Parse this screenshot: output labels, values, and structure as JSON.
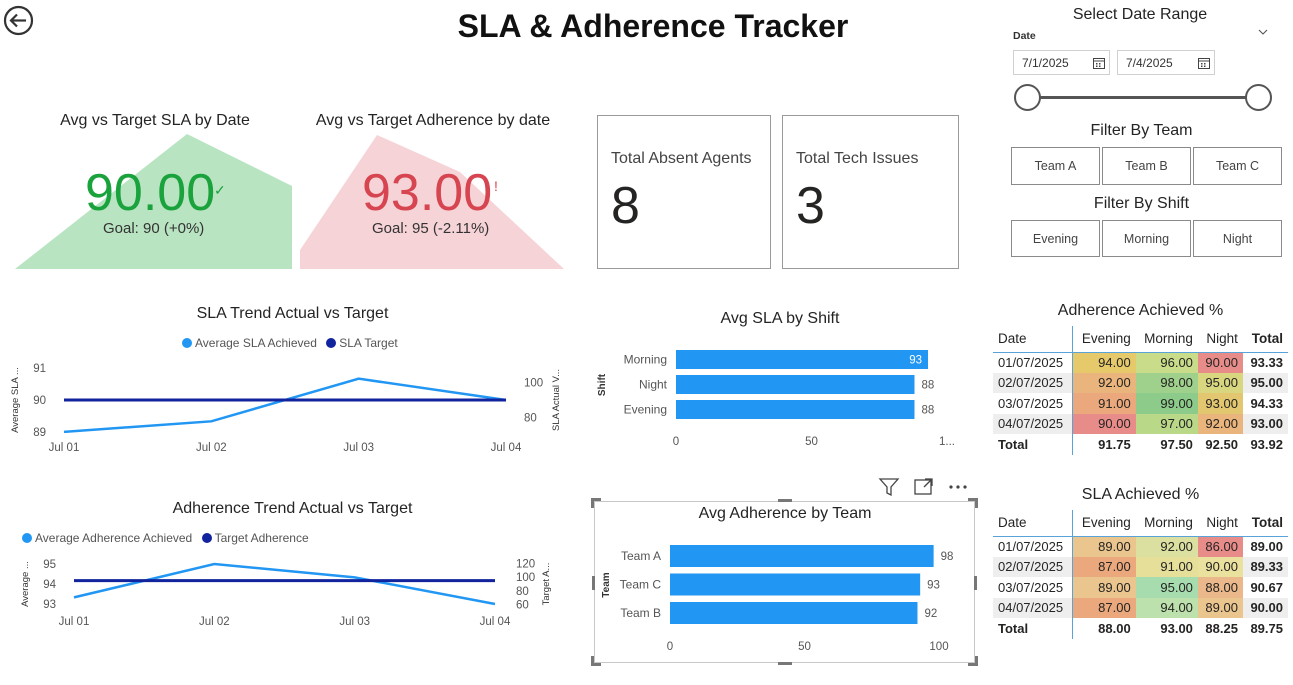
{
  "title": "SLA & Adherence Tracker",
  "kpi_sla": {
    "title": "Avg vs Target SLA by Date",
    "value": "90.00",
    "goal": "Goal: 90 (+0%)",
    "status_icon": "checkmark-icon",
    "color": "#1aa23c",
    "bg": "#b9e4c2"
  },
  "kpi_adh": {
    "title": "Avg vs Target Adherence by date",
    "value": "93.00",
    "goal": "Goal: 95 (-2.11%)",
    "status_icon": "exclamation-icon",
    "color": "#d64550",
    "bg": "#f6d3d7"
  },
  "cards": [
    {
      "label": "Total Absent Agents",
      "value": "8"
    },
    {
      "label": "Total Tech Issues",
      "value": "3"
    }
  ],
  "date_slicer": {
    "title": "Select Date Range",
    "field_label": "Date",
    "start": "7/1/2025",
    "end": "7/4/2025"
  },
  "team_filter": {
    "title": "Filter By Team",
    "options": [
      "Team A",
      "Team B",
      "Team C"
    ]
  },
  "shift_filter": {
    "title": "Filter By Shift",
    "options": [
      "Evening",
      "Morning",
      "Night"
    ]
  },
  "sla_trend": {
    "title": "SLA Trend Actual vs Target",
    "legend": [
      "Average SLA Achieved",
      "SLA Target"
    ],
    "y_left_label": "Average SLA ...",
    "y_right_label": "SLA Actual V...",
    "y_left_ticks": [
      "91",
      "90",
      "89"
    ],
    "y_right_ticks": [
      "100",
      "80"
    ],
    "x_ticks": [
      "Jul 01",
      "Jul 02",
      "Jul 03",
      "Jul 04"
    ]
  },
  "adh_trend": {
    "title": "Adherence Trend Actual vs Target",
    "legend": [
      "Average Adherence Achieved",
      "Target Adherence"
    ],
    "y_left_label": "Average ...",
    "y_right_label": "Target A...",
    "y_left_ticks": [
      "95",
      "94",
      "93"
    ],
    "y_right_ticks": [
      "120",
      "100",
      "80",
      "60"
    ],
    "x_ticks": [
      "Jul 01",
      "Jul 02",
      "Jul 03",
      "Jul 04"
    ]
  },
  "sla_by_shift": {
    "title": "Avg SLA by Shift",
    "axis_label": "Shift",
    "ticks": [
      "0",
      "50",
      "1..."
    ]
  },
  "adh_by_team": {
    "title": "Avg Adherence by Team",
    "axis_label": "Team",
    "ticks": [
      "0",
      "50",
      "100"
    ]
  },
  "adherence_matrix": {
    "title": "Adherence Achieved %",
    "columns": [
      "Date",
      "Evening",
      "Morning",
      "Night",
      "Total"
    ],
    "rows": [
      {
        "date": "01/07/2025",
        "cells": [
          "94.00",
          "96.00",
          "90.00"
        ],
        "colors": [
          "#e6c96a",
          "#c9dc8a",
          "#e88c8a"
        ],
        "total": "93.33"
      },
      {
        "date": "02/07/2025",
        "cells": [
          "92.00",
          "98.00",
          "95.00"
        ],
        "colors": [
          "#eab57c",
          "#9fd18c",
          "#d9d680"
        ],
        "total": "95.00"
      },
      {
        "date": "03/07/2025",
        "cells": [
          "91.00",
          "99.00",
          "93.00"
        ],
        "colors": [
          "#eaa87c",
          "#8ccb8a",
          "#e2c670"
        ],
        "total": "94.33"
      },
      {
        "date": "04/07/2025",
        "cells": [
          "90.00",
          "97.00",
          "92.00"
        ],
        "colors": [
          "#e88c8a",
          "#b9d888",
          "#eab57c"
        ],
        "total": "93.00"
      }
    ],
    "totals": {
      "label": "Total",
      "cells": [
        "91.75",
        "97.50",
        "92.50"
      ],
      "total": "93.92"
    }
  },
  "sla_matrix": {
    "title": "SLA Achieved %",
    "columns": [
      "Date",
      "Evening",
      "Morning",
      "Night",
      "Total"
    ],
    "rows": [
      {
        "date": "01/07/2025",
        "cells": [
          "89.00",
          "92.00",
          "86.00"
        ],
        "colors": [
          "#eac58e",
          "#dbe0a0",
          "#e88c8a"
        ],
        "total": "89.00"
      },
      {
        "date": "02/07/2025",
        "cells": [
          "87.00",
          "91.00",
          "90.00"
        ],
        "colors": [
          "#eaa87c",
          "#e6df9a",
          "#ebe19e"
        ],
        "total": "89.33"
      },
      {
        "date": "03/07/2025",
        "cells": [
          "89.00",
          "95.00",
          "88.00"
        ],
        "colors": [
          "#eac58e",
          "#a7dcae",
          "#eab88a"
        ],
        "total": "90.67"
      },
      {
        "date": "04/07/2025",
        "cells": [
          "87.00",
          "94.00",
          "89.00"
        ],
        "colors": [
          "#eaa87c",
          "#bde1ac",
          "#eac58e"
        ],
        "total": "90.00"
      }
    ],
    "totals": {
      "label": "Total",
      "cells": [
        "88.00",
        "93.00",
        "88.25"
      ],
      "total": "89.75"
    }
  },
  "chart_data": [
    {
      "type": "line",
      "title": "SLA Trend Actual vs Target",
      "x": [
        "Jul 01",
        "Jul 02",
        "Jul 03",
        "Jul 04"
      ],
      "series": [
        {
          "name": "Average SLA Achieved",
          "values": [
            89.0,
            89.33,
            90.67,
            90.0
          ],
          "color": "#2196f3",
          "axis": "left"
        },
        {
          "name": "SLA Target",
          "values": [
            90,
            90,
            90,
            90
          ],
          "color": "#12239e",
          "axis": "left"
        }
      ],
      "ylim_left": [
        88.9,
        91.1
      ],
      "ylim_right": [
        70,
        110
      ]
    },
    {
      "type": "line",
      "title": "Adherence Trend Actual vs Target",
      "x": [
        "Jul 01",
        "Jul 02",
        "Jul 03",
        "Jul 04"
      ],
      "series": [
        {
          "name": "Average Adherence Achieved",
          "values": [
            93.33,
            95.0,
            94.33,
            93.0
          ],
          "color": "#2196f3",
          "axis": "left"
        },
        {
          "name": "Target Adherence",
          "values": [
            95,
            95,
            95,
            95
          ],
          "color": "#12239e",
          "axis": "right"
        }
      ],
      "ylim_left": [
        92.8,
        95.2
      ],
      "ylim_right": [
        55,
        125
      ]
    },
    {
      "type": "bar",
      "title": "Avg SLA by Shift",
      "categories": [
        "Morning",
        "Night",
        "Evening"
      ],
      "values": [
        93,
        88,
        88
      ],
      "labels": [
        "93",
        "88",
        "88"
      ],
      "xlim": [
        0,
        100
      ],
      "color": "#2196f3"
    },
    {
      "type": "bar",
      "title": "Avg Adherence by Team",
      "categories": [
        "Team A",
        "Team C",
        "Team B"
      ],
      "values": [
        98,
        93,
        92
      ],
      "labels": [
        "98",
        "93",
        "92"
      ],
      "xlim": [
        0,
        100
      ],
      "color": "#2196f3"
    }
  ]
}
